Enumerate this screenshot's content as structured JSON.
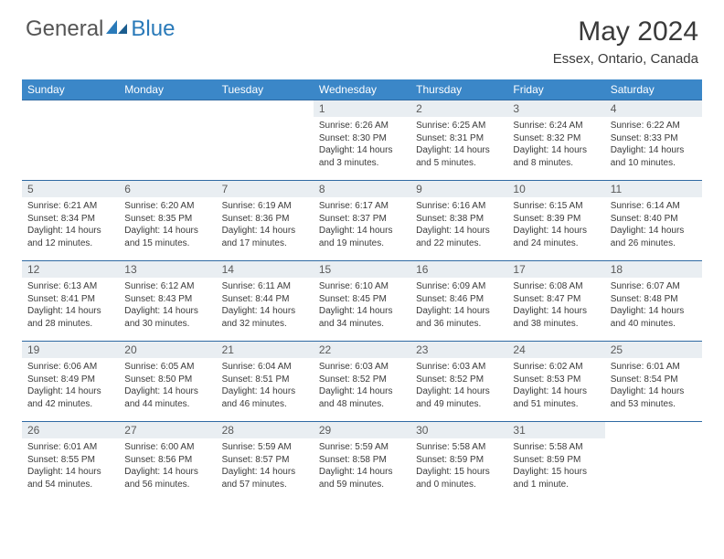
{
  "logo": {
    "general": "General",
    "blue": "Blue"
  },
  "title": "May 2024",
  "location": "Essex, Ontario, Canada",
  "dayNames": [
    "Sunday",
    "Monday",
    "Tuesday",
    "Wednesday",
    "Thursday",
    "Friday",
    "Saturday"
  ],
  "colors": {
    "headerBg": "#3b87c8",
    "rowBorder": "#2f6aa3",
    "dayBarBg": "#e9eef2",
    "logoBlue": "#2a7ab9",
    "text": "#3a3a3a"
  },
  "weeks": [
    [
      {
        "n": "",
        "lines": []
      },
      {
        "n": "",
        "lines": []
      },
      {
        "n": "",
        "lines": []
      },
      {
        "n": "1",
        "lines": [
          "Sunrise: 6:26 AM",
          "Sunset: 8:30 PM",
          "Daylight: 14 hours",
          "and 3 minutes."
        ]
      },
      {
        "n": "2",
        "lines": [
          "Sunrise: 6:25 AM",
          "Sunset: 8:31 PM",
          "Daylight: 14 hours",
          "and 5 minutes."
        ]
      },
      {
        "n": "3",
        "lines": [
          "Sunrise: 6:24 AM",
          "Sunset: 8:32 PM",
          "Daylight: 14 hours",
          "and 8 minutes."
        ]
      },
      {
        "n": "4",
        "lines": [
          "Sunrise: 6:22 AM",
          "Sunset: 8:33 PM",
          "Daylight: 14 hours",
          "and 10 minutes."
        ]
      }
    ],
    [
      {
        "n": "5",
        "lines": [
          "Sunrise: 6:21 AM",
          "Sunset: 8:34 PM",
          "Daylight: 14 hours",
          "and 12 minutes."
        ]
      },
      {
        "n": "6",
        "lines": [
          "Sunrise: 6:20 AM",
          "Sunset: 8:35 PM",
          "Daylight: 14 hours",
          "and 15 minutes."
        ]
      },
      {
        "n": "7",
        "lines": [
          "Sunrise: 6:19 AM",
          "Sunset: 8:36 PM",
          "Daylight: 14 hours",
          "and 17 minutes."
        ]
      },
      {
        "n": "8",
        "lines": [
          "Sunrise: 6:17 AM",
          "Sunset: 8:37 PM",
          "Daylight: 14 hours",
          "and 19 minutes."
        ]
      },
      {
        "n": "9",
        "lines": [
          "Sunrise: 6:16 AM",
          "Sunset: 8:38 PM",
          "Daylight: 14 hours",
          "and 22 minutes."
        ]
      },
      {
        "n": "10",
        "lines": [
          "Sunrise: 6:15 AM",
          "Sunset: 8:39 PM",
          "Daylight: 14 hours",
          "and 24 minutes."
        ]
      },
      {
        "n": "11",
        "lines": [
          "Sunrise: 6:14 AM",
          "Sunset: 8:40 PM",
          "Daylight: 14 hours",
          "and 26 minutes."
        ]
      }
    ],
    [
      {
        "n": "12",
        "lines": [
          "Sunrise: 6:13 AM",
          "Sunset: 8:41 PM",
          "Daylight: 14 hours",
          "and 28 minutes."
        ]
      },
      {
        "n": "13",
        "lines": [
          "Sunrise: 6:12 AM",
          "Sunset: 8:43 PM",
          "Daylight: 14 hours",
          "and 30 minutes."
        ]
      },
      {
        "n": "14",
        "lines": [
          "Sunrise: 6:11 AM",
          "Sunset: 8:44 PM",
          "Daylight: 14 hours",
          "and 32 minutes."
        ]
      },
      {
        "n": "15",
        "lines": [
          "Sunrise: 6:10 AM",
          "Sunset: 8:45 PM",
          "Daylight: 14 hours",
          "and 34 minutes."
        ]
      },
      {
        "n": "16",
        "lines": [
          "Sunrise: 6:09 AM",
          "Sunset: 8:46 PM",
          "Daylight: 14 hours",
          "and 36 minutes."
        ]
      },
      {
        "n": "17",
        "lines": [
          "Sunrise: 6:08 AM",
          "Sunset: 8:47 PM",
          "Daylight: 14 hours",
          "and 38 minutes."
        ]
      },
      {
        "n": "18",
        "lines": [
          "Sunrise: 6:07 AM",
          "Sunset: 8:48 PM",
          "Daylight: 14 hours",
          "and 40 minutes."
        ]
      }
    ],
    [
      {
        "n": "19",
        "lines": [
          "Sunrise: 6:06 AM",
          "Sunset: 8:49 PM",
          "Daylight: 14 hours",
          "and 42 minutes."
        ]
      },
      {
        "n": "20",
        "lines": [
          "Sunrise: 6:05 AM",
          "Sunset: 8:50 PM",
          "Daylight: 14 hours",
          "and 44 minutes."
        ]
      },
      {
        "n": "21",
        "lines": [
          "Sunrise: 6:04 AM",
          "Sunset: 8:51 PM",
          "Daylight: 14 hours",
          "and 46 minutes."
        ]
      },
      {
        "n": "22",
        "lines": [
          "Sunrise: 6:03 AM",
          "Sunset: 8:52 PM",
          "Daylight: 14 hours",
          "and 48 minutes."
        ]
      },
      {
        "n": "23",
        "lines": [
          "Sunrise: 6:03 AM",
          "Sunset: 8:52 PM",
          "Daylight: 14 hours",
          "and 49 minutes."
        ]
      },
      {
        "n": "24",
        "lines": [
          "Sunrise: 6:02 AM",
          "Sunset: 8:53 PM",
          "Daylight: 14 hours",
          "and 51 minutes."
        ]
      },
      {
        "n": "25",
        "lines": [
          "Sunrise: 6:01 AM",
          "Sunset: 8:54 PM",
          "Daylight: 14 hours",
          "and 53 minutes."
        ]
      }
    ],
    [
      {
        "n": "26",
        "lines": [
          "Sunrise: 6:01 AM",
          "Sunset: 8:55 PM",
          "Daylight: 14 hours",
          "and 54 minutes."
        ]
      },
      {
        "n": "27",
        "lines": [
          "Sunrise: 6:00 AM",
          "Sunset: 8:56 PM",
          "Daylight: 14 hours",
          "and 56 minutes."
        ]
      },
      {
        "n": "28",
        "lines": [
          "Sunrise: 5:59 AM",
          "Sunset: 8:57 PM",
          "Daylight: 14 hours",
          "and 57 minutes."
        ]
      },
      {
        "n": "29",
        "lines": [
          "Sunrise: 5:59 AM",
          "Sunset: 8:58 PM",
          "Daylight: 14 hours",
          "and 59 minutes."
        ]
      },
      {
        "n": "30",
        "lines": [
          "Sunrise: 5:58 AM",
          "Sunset: 8:59 PM",
          "Daylight: 15 hours",
          "and 0 minutes."
        ]
      },
      {
        "n": "31",
        "lines": [
          "Sunrise: 5:58 AM",
          "Sunset: 8:59 PM",
          "Daylight: 15 hours",
          "and 1 minute."
        ]
      },
      {
        "n": "",
        "lines": []
      }
    ]
  ]
}
